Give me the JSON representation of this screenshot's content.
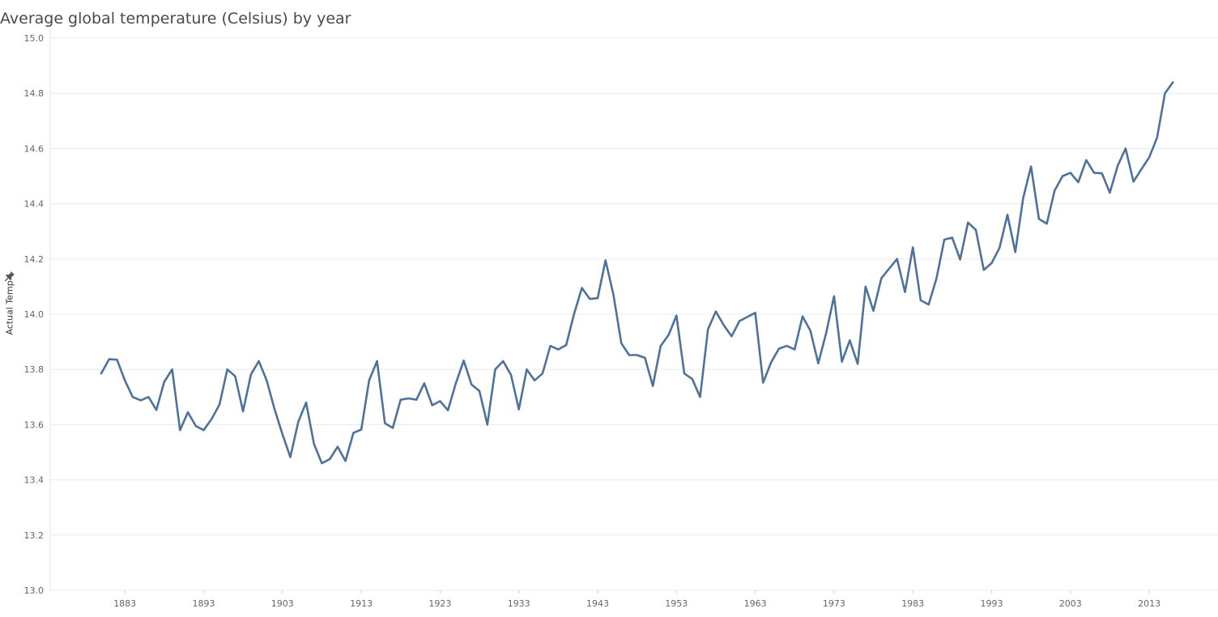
{
  "chart_data": {
    "type": "line",
    "title": "Average global temperature (Celsius) by year",
    "xlabel": "",
    "ylabel": "Actual Temp",
    "ylim": [
      13.0,
      15.0
    ],
    "xlim": [
      1873,
      2024
    ],
    "y_ticks": [
      "13.0",
      "13.2",
      "13.4",
      "13.6",
      "13.8",
      "14.0",
      "14.2",
      "14.4",
      "14.6",
      "14.8",
      "15.0"
    ],
    "x_ticks": [
      "1883",
      "1893",
      "1903",
      "1913",
      "1923",
      "1933",
      "1943",
      "1953",
      "1963",
      "1973",
      "1983",
      "1993",
      "2003",
      "2013"
    ],
    "grid": true,
    "color": "#4e7299",
    "series": [
      {
        "name": "Actual Temp",
        "x": [
          1880,
          1881,
          1882,
          1883,
          1884,
          1885,
          1886,
          1887,
          1888,
          1889,
          1890,
          1891,
          1892,
          1893,
          1894,
          1895,
          1896,
          1897,
          1898,
          1899,
          1900,
          1901,
          1902,
          1903,
          1904,
          1905,
          1906,
          1907,
          1908,
          1909,
          1910,
          1911,
          1912,
          1913,
          1914,
          1915,
          1916,
          1917,
          1918,
          1919,
          1920,
          1921,
          1922,
          1923,
          1924,
          1925,
          1926,
          1927,
          1928,
          1929,
          1930,
          1931,
          1932,
          1933,
          1934,
          1935,
          1936,
          1937,
          1938,
          1939,
          1940,
          1941,
          1942,
          1943,
          1944,
          1945,
          1946,
          1947,
          1948,
          1949,
          1950,
          1951,
          1952,
          1953,
          1954,
          1955,
          1956,
          1957,
          1958,
          1959,
          1960,
          1961,
          1962,
          1963,
          1964,
          1965,
          1966,
          1967,
          1968,
          1969,
          1970,
          1971,
          1972,
          1973,
          1974,
          1975,
          1976,
          1977,
          1978,
          1979,
          1980,
          1981,
          1982,
          1983,
          1984,
          1985,
          1986,
          1987,
          1988,
          1989,
          1990,
          1991,
          1992,
          1993,
          1994,
          1995,
          1996,
          1997,
          1998,
          1999,
          2000,
          2001,
          2002,
          2003,
          2004,
          2005,
          2006,
          2007,
          2008,
          2009,
          2010,
          2011,
          2012,
          2013,
          2014,
          2015,
          2016
        ],
        "values": [
          13.785,
          13.837,
          13.835,
          13.76,
          13.7,
          13.688,
          13.7,
          13.653,
          13.755,
          13.8,
          13.58,
          13.645,
          13.595,
          13.58,
          13.62,
          13.672,
          13.8,
          13.775,
          13.648,
          13.782,
          13.83,
          13.76,
          13.655,
          13.565,
          13.482,
          13.61,
          13.68,
          13.53,
          13.46,
          13.475,
          13.52,
          13.468,
          13.57,
          13.582,
          13.76,
          13.83,
          13.605,
          13.588,
          13.69,
          13.695,
          13.69,
          13.75,
          13.67,
          13.685,
          13.652,
          13.75,
          13.832,
          13.745,
          13.722,
          13.6,
          13.8,
          13.83,
          13.78,
          13.655,
          13.8,
          13.76,
          13.785,
          13.885,
          13.872,
          13.888,
          14.0,
          14.095,
          14.055,
          14.058,
          14.195,
          14.07,
          13.895,
          13.852,
          13.852,
          13.842,
          13.74,
          13.885,
          13.925,
          13.995,
          13.785,
          13.765,
          13.7,
          13.945,
          14.01,
          13.96,
          13.92,
          13.975,
          13.99,
          14.005,
          13.752,
          13.825,
          13.875,
          13.885,
          13.872,
          13.992,
          13.94,
          13.822,
          13.932,
          14.065,
          13.828,
          13.905,
          13.82,
          14.1,
          14.012,
          14.13,
          14.165,
          14.2,
          14.08,
          14.242,
          14.05,
          14.035,
          14.13,
          14.27,
          14.277,
          14.198,
          14.332,
          14.305,
          14.16,
          14.185,
          14.24,
          14.36,
          14.225,
          14.42,
          14.535,
          14.345,
          14.328,
          14.448,
          14.5,
          14.512,
          14.478,
          14.558,
          14.512,
          14.51,
          14.44,
          14.538,
          14.6,
          14.48,
          14.525,
          14.568,
          14.64,
          14.8,
          14.84
        ]
      }
    ]
  }
}
